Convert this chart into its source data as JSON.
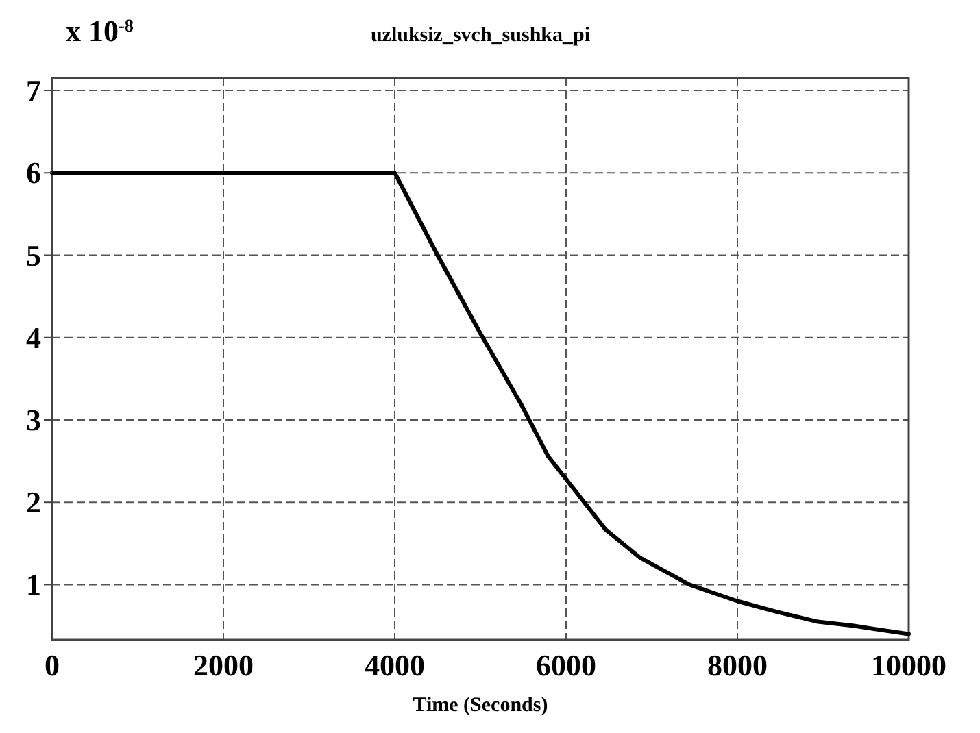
{
  "chart_data": {
    "type": "line",
    "title": "uzluksiz_svch_sushka_pi",
    "xlabel": "Time (Seconds)",
    "annotations": [
      "x 10$^{-8}$"
    ],
    "x": [
      0,
      1000,
      2000,
      3000,
      4000,
      4500,
      5000,
      5470,
      5790,
      6160,
      6460,
      6860,
      7440,
      8000,
      8460,
      8940,
      9360,
      10000
    ],
    "series": [
      {
        "color": "#000000",
        "values": [
          6,
          6,
          6,
          6,
          6,
          5.0,
          4.05,
          3.2,
          2.56,
          2.07,
          1.67,
          1.33,
          1.0,
          0.8,
          0.67,
          0.55,
          0.5,
          0.4
        ]
      }
    ],
    "xlim": [
      0,
      10000
    ],
    "ylim": [
      0.33,
      7.15
    ],
    "xticks": [
      0,
      2000,
      4000,
      6000,
      8000,
      10000
    ],
    "yticks": [
      1,
      2,
      3,
      4,
      5,
      6,
      7
    ],
    "grid": true,
    "line_style": "solid",
    "marker": "none"
  }
}
